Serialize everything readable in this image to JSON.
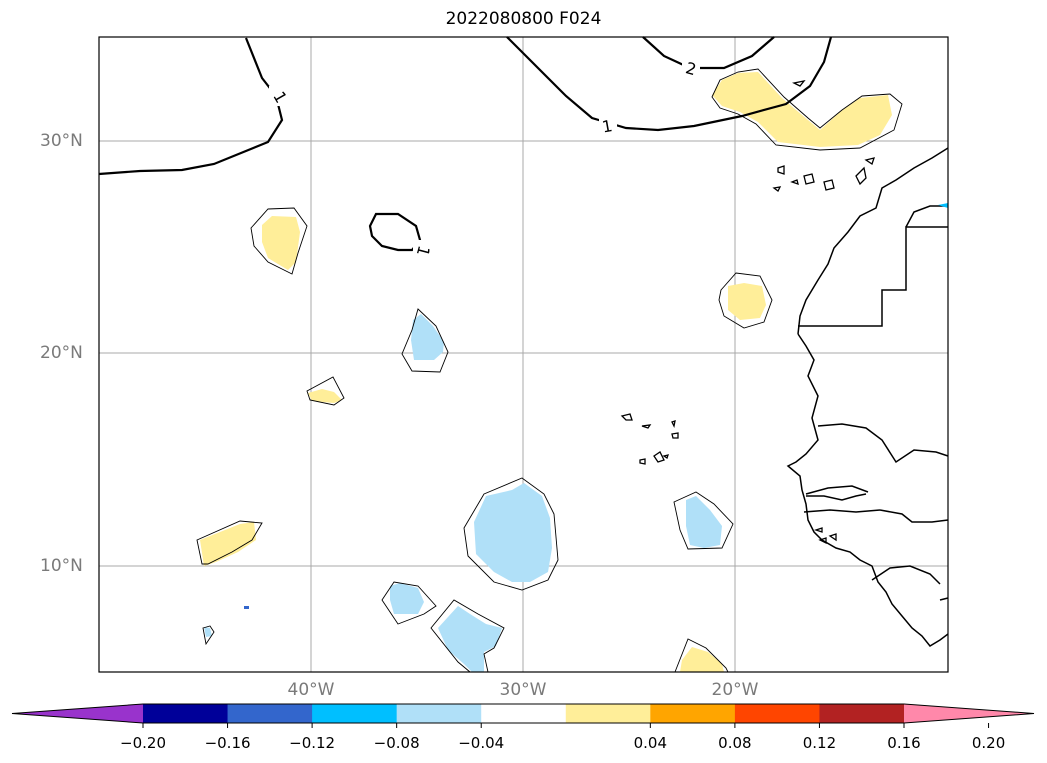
{
  "title": "2022080800 F024",
  "lat_labels": [
    "30°N",
    "20°N",
    "10°N"
  ],
  "lon_labels": [
    "40°W",
    "30°W",
    "20°W"
  ],
  "contour_labels": [
    "1",
    "2",
    "1",
    "1"
  ],
  "colorbar": {
    "colors": [
      "#9933cc",
      "#000099",
      "#3366cc",
      "#00bfff",
      "#b0e0f8",
      "#ffffff",
      "#ffee99",
      "#ffa500",
      "#ff4500",
      "#b22222",
      "#ff88aa"
    ],
    "tick_labels": [
      "−0.20",
      "−0.16",
      "−0.12",
      "−0.08",
      "−0.04",
      "0.04",
      "0.08",
      "0.12",
      "0.16",
      "0.20"
    ]
  },
  "colors": {
    "positive_fill": "#ffee99",
    "negative_fill": "#b0e0f8",
    "grid": "#a8a8a8"
  }
}
